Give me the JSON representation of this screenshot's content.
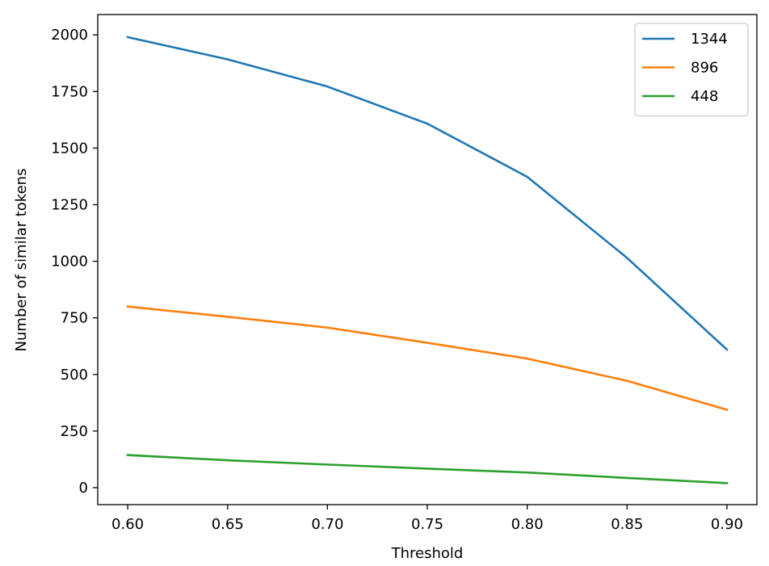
{
  "chart_data": {
    "type": "line",
    "title": "",
    "xlabel": "Threshold",
    "ylabel": "Number of similar tokens",
    "x": [
      0.6,
      0.65,
      0.7,
      0.75,
      0.8,
      0.85,
      0.9
    ],
    "xlim": [
      0.585,
      0.915
    ],
    "ylim": [
      -75,
      2090
    ],
    "xticks": [
      0.6,
      0.65,
      0.7,
      0.75,
      0.8,
      0.85,
      0.9
    ],
    "xtick_labels": [
      "0.60",
      "0.65",
      "0.70",
      "0.75",
      "0.80",
      "0.85",
      "0.90"
    ],
    "yticks": [
      0,
      250,
      500,
      750,
      1000,
      1250,
      1500,
      1750,
      2000
    ],
    "ytick_labels": [
      "0",
      "250",
      "500",
      "750",
      "1000",
      "1250",
      "1500",
      "1750",
      "2000"
    ],
    "grid": false,
    "legend": "top-right",
    "series": [
      {
        "name": "1344",
        "color": "#1f77b4",
        "values": [
          1990,
          1892,
          1772,
          1608,
          1373,
          1015,
          610
        ]
      },
      {
        "name": "896",
        "color": "#ff7f0e",
        "values": [
          800,
          755,
          707,
          640,
          570,
          472,
          344
        ]
      },
      {
        "name": "448",
        "color": "#2ca02c",
        "values": [
          144,
          121,
          102,
          84,
          67,
          43,
          20
        ]
      }
    ]
  }
}
